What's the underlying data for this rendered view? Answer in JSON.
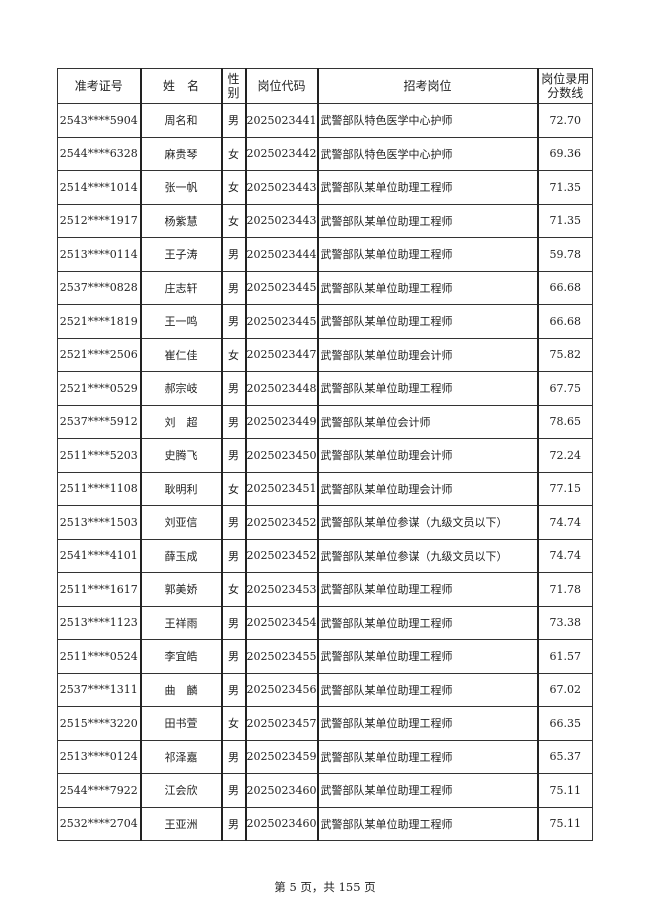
{
  "table": {
    "headers": [
      "准考证号",
      "姓　名",
      "性别",
      "岗位代码",
      "招考岗位",
      "岗位录用分数线"
    ],
    "rows": [
      [
        "2543****5904",
        "周名和",
        "男",
        "2025023441",
        "武警部队特色医学中心护师",
        "72.70"
      ],
      [
        "2544****6328",
        "麻贵琴",
        "女",
        "2025023442",
        "武警部队特色医学中心护师",
        "69.36"
      ],
      [
        "2514****1014",
        "张一帆",
        "女",
        "2025023443",
        "武警部队某单位助理工程师",
        "71.35"
      ],
      [
        "2512****1917",
        "杨紫慧",
        "女",
        "2025023443",
        "武警部队某单位助理工程师",
        "71.35"
      ],
      [
        "2513****0114",
        "王子涛",
        "男",
        "2025023444",
        "武警部队某单位助理工程师",
        "59.78"
      ],
      [
        "2537****0828",
        "庄志轩",
        "男",
        "2025023445",
        "武警部队某单位助理工程师",
        "66.68"
      ],
      [
        "2521****1819",
        "王一鸣",
        "男",
        "2025023445",
        "武警部队某单位助理工程师",
        "66.68"
      ],
      [
        "2521****2506",
        "崔仁佳",
        "女",
        "2025023447",
        "武警部队某单位助理会计师",
        "75.82"
      ],
      [
        "2521****0529",
        "郝宗岐",
        "男",
        "2025023448",
        "武警部队某单位助理工程师",
        "67.75"
      ],
      [
        "2537****5912",
        "刘　超",
        "男",
        "2025023449",
        "武警部队某单位会计师",
        "78.65"
      ],
      [
        "2511****5203",
        "史腾飞",
        "男",
        "2025023450",
        "武警部队某单位助理会计师",
        "72.24"
      ],
      [
        "2511****1108",
        "耿明利",
        "女",
        "2025023451",
        "武警部队某单位助理会计师",
        "77.15"
      ],
      [
        "2513****1503",
        "刘亚信",
        "男",
        "2025023452",
        "武警部队某单位参谋（九级文员以下）",
        "74.74"
      ],
      [
        "2541****4101",
        "薛玉成",
        "男",
        "2025023452",
        "武警部队某单位参谋（九级文员以下）",
        "74.74"
      ],
      [
        "2511****1617",
        "郭美娇",
        "女",
        "2025023453",
        "武警部队某单位助理工程师",
        "71.78"
      ],
      [
        "2513****1123",
        "王祥雨",
        "男",
        "2025023454",
        "武警部队某单位助理工程师",
        "73.38"
      ],
      [
        "2511****0524",
        "李宜皓",
        "男",
        "2025023455",
        "武警部队某单位助理工程师",
        "61.57"
      ],
      [
        "2537****1311",
        "曲　麟",
        "男",
        "2025023456",
        "武警部队某单位助理工程师",
        "67.02"
      ],
      [
        "2515****3220",
        "田书萱",
        "女",
        "2025023457",
        "武警部队某单位助理工程师",
        "66.35"
      ],
      [
        "2513****0124",
        "祁泽嘉",
        "男",
        "2025023459",
        "武警部队某单位助理工程师",
        "65.37"
      ],
      [
        "2544****7922",
        "江会欣",
        "男",
        "2025023460",
        "武警部队某单位助理工程师",
        "75.11"
      ],
      [
        "2532****2704",
        "王亚洲",
        "男",
        "2025023460",
        "武警部队某单位助理工程师",
        "75.11"
      ]
    ]
  },
  "footer": "第 5 页，共 155 页"
}
